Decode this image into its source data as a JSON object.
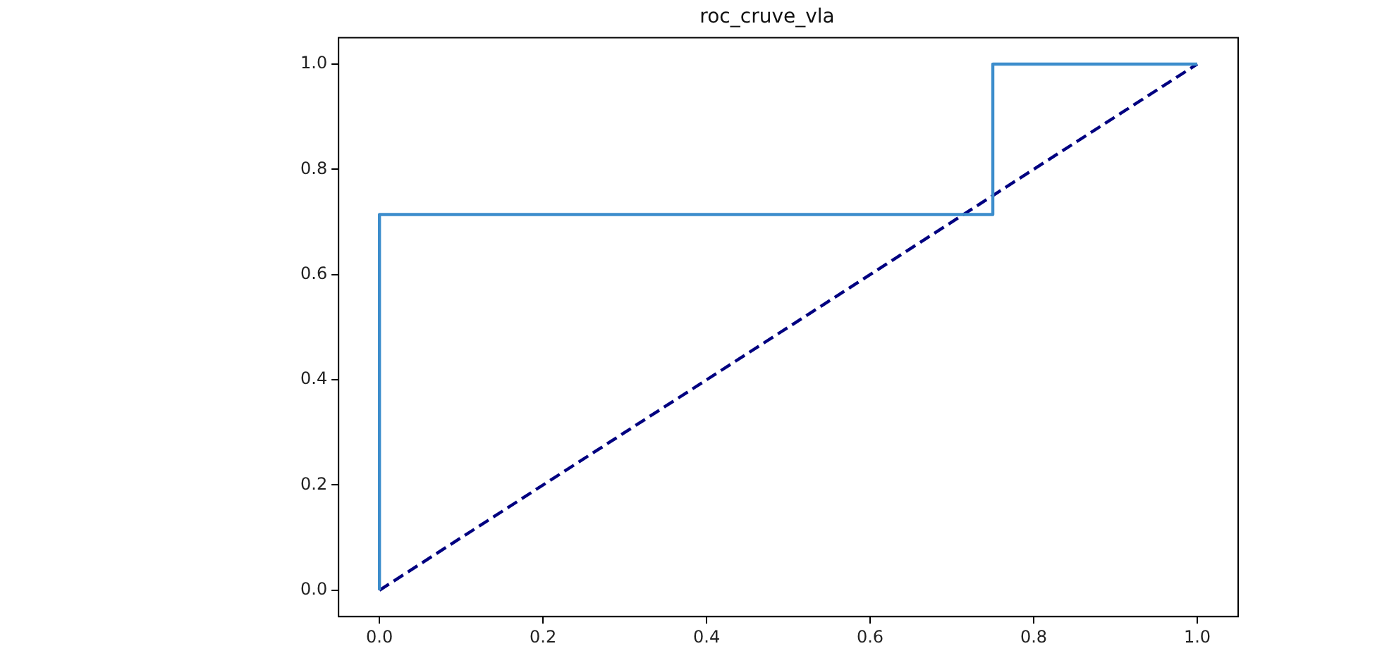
{
  "chart_data": {
    "type": "line",
    "title": "roc_cruve_vla",
    "series": [
      {
        "color": "#3c8dcc",
        "x": [
          0,
          0,
          0.75,
          0.75,
          1
        ],
        "values": [
          0,
          0.714,
          0.714,
          1,
          1
        ],
        "line_style": "solid"
      },
      {
        "color": "#000080",
        "x": [
          0,
          1
        ],
        "values": [
          0,
          1
        ],
        "line_style": "dashed"
      }
    ],
    "xlim": [
      -0.05,
      1.05
    ],
    "xticks": [
      {
        "value": 0,
        "label": "0.0"
      },
      {
        "value": 0.2,
        "label": "0.2"
      },
      {
        "value": 0.4,
        "label": "0.4"
      },
      {
        "value": 0.6,
        "label": "0.6"
      },
      {
        "value": 0.8,
        "label": "0.8"
      },
      {
        "value": 1,
        "label": "1.0"
      }
    ],
    "ylim": [
      -0.05,
      1.05
    ],
    "yticks": [
      {
        "value": 0,
        "label": "0.0"
      },
      {
        "value": 0.2,
        "label": "0.2"
      },
      {
        "value": 0.4,
        "label": "0.4"
      },
      {
        "value": 0.6,
        "label": "0.6"
      },
      {
        "value": 0.8,
        "label": "0.8"
      },
      {
        "value": 1,
        "label": "1.0"
      }
    ],
    "grid": false,
    "legend": false,
    "marker": "none"
  }
}
